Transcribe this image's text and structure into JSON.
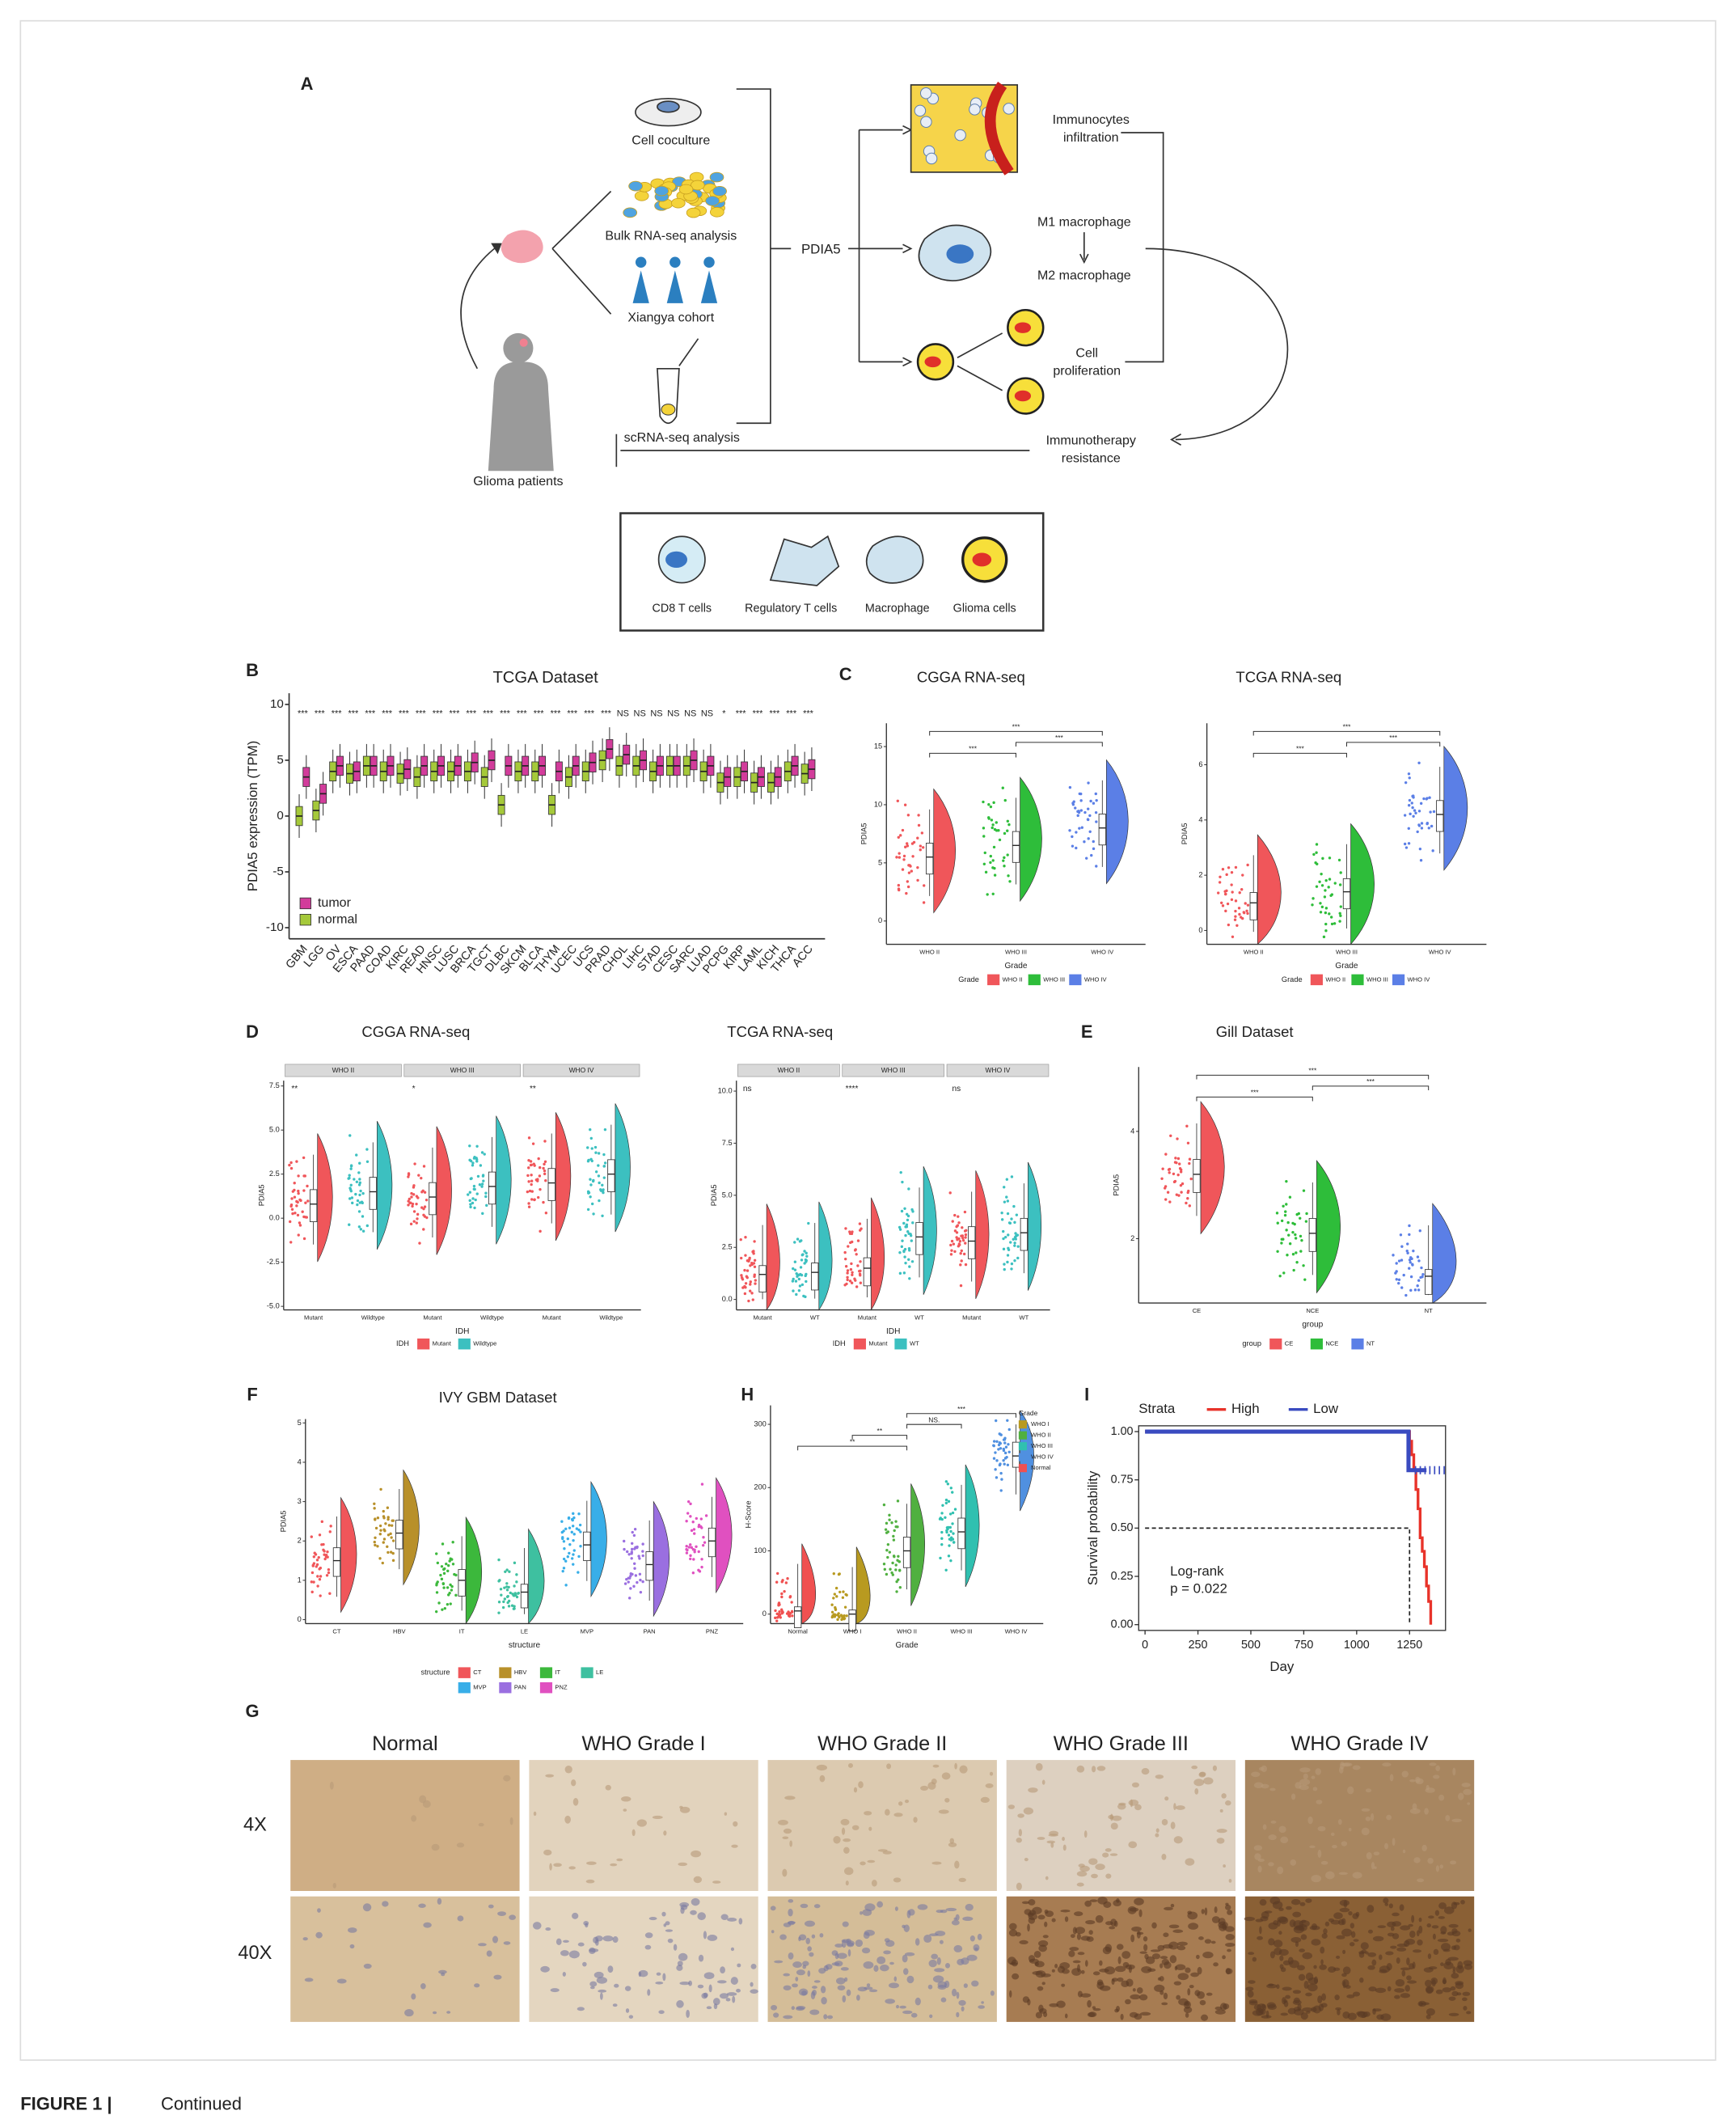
{
  "figure": {
    "A": {
      "label": "A",
      "inputs": [
        "Cell coculture",
        "Bulk RNA-seq analysis",
        "Xiangya cohort",
        "scRNA-seq analysis"
      ],
      "patients": "Glioma patients",
      "gene": "PDIA5",
      "effects": [
        [
          "Immunocytes",
          "infiltration"
        ],
        [
          "M1 macrophage"
        ],
        [
          "M2 macrophage"
        ],
        [
          "Cell",
          "proliferation"
        ]
      ],
      "outcome": [
        "Immunotherapy",
        "resistance"
      ],
      "cell_legend": [
        "CD8 T cells",
        "Regulatory T cells",
        "Macrophage",
        "Glioma cells"
      ]
    },
    "B": {
      "label": "B",
      "title": "TCGA Dataset",
      "ylabel": "PDIA5 expression (TPM)",
      "ylim": [
        -11,
        11
      ],
      "yticks": [
        10,
        5,
        0,
        -5,
        -10
      ],
      "categories": [
        "GBM",
        "LGG",
        "OV",
        "ESCA",
        "PAAD",
        "COAD",
        "KIRC",
        "READ",
        "HNSC",
        "LUSC",
        "BRCA",
        "TGCT",
        "DLBC",
        "SKCM",
        "BLCA",
        "THYM",
        "UCEC",
        "UCS",
        "PRAD",
        "CHOL",
        "LIHC",
        "STAD",
        "CESC",
        "SARC",
        "LUAD",
        "PCPG",
        "KIRP",
        "LAML",
        "KICH",
        "THCA",
        "ACC"
      ],
      "significance": [
        "***",
        "***",
        "***",
        "***",
        "***",
        "***",
        "***",
        "***",
        "***",
        "***",
        "***",
        "***",
        "***",
        "***",
        "***",
        "***",
        "***",
        "***",
        "***",
        "NS",
        "NS",
        "NS",
        "NS",
        "NS",
        "NS",
        "*",
        "***",
        "***",
        "***",
        "***",
        "***"
      ],
      "series": [
        {
          "name": "tumor",
          "color": "#d23c9b",
          "values": [
            3.5,
            2,
            4.5,
            4,
            4.5,
            4.5,
            4.2,
            4.5,
            4.5,
            4.5,
            4.8,
            5,
            4.5,
            4.5,
            4.5,
            4,
            4.5,
            4.8,
            6,
            5.5,
            5,
            4.5,
            4.5,
            5,
            4.5,
            3.5,
            4,
            3.5,
            3.5,
            4.5,
            4.2
          ]
        },
        {
          "name": "normal",
          "color": "#a5c93a",
          "values": [
            0,
            0.5,
            4,
            3.8,
            4.5,
            4,
            3.8,
            3.5,
            4,
            4,
            4,
            3.5,
            1,
            4,
            4,
            1,
            3.5,
            4,
            5,
            4.5,
            4.5,
            4,
            4.5,
            4.5,
            4,
            3,
            3.5,
            3,
            3,
            4,
            3.8
          ]
        }
      ]
    },
    "C": {
      "label": "C",
      "plots": [
        {
          "title": "CGGA RNA-seq",
          "ylabel": "PDIA5",
          "xlabel": "Grade",
          "ylim": [
            -2,
            17
          ],
          "yticks": [
            0,
            5,
            10,
            15
          ],
          "categories": [
            "WHO II",
            "WHO III",
            "WHO IV"
          ],
          "colors": [
            "#f0565a",
            "#2ebd3a",
            "#5b7fe6"
          ],
          "medians": [
            5.5,
            6.5,
            8
          ],
          "brackets": {
            "pairs": [
              [
                0,
                1
              ],
              [
                1,
                2
              ],
              [
                0,
                2
              ]
            ],
            "labels": [
              "***",
              "***",
              "***"
            ]
          },
          "legend": {
            "title": "Grade",
            "items": [
              "WHO II",
              "WHO III",
              "WHO IV"
            ],
            "colors": [
              "#f0565a",
              "#2ebd3a",
              "#5b7fe6"
            ]
          }
        },
        {
          "title": "TCGA RNA-seq",
          "ylabel": "PDIA5",
          "xlabel": "Grade",
          "ylim": [
            -0.5,
            7.5
          ],
          "yticks": [
            0,
            2,
            4,
            6
          ],
          "categories": [
            "WHO II",
            "WHO III",
            "WHO IV"
          ],
          "colors": [
            "#f0565a",
            "#2ebd3a",
            "#5b7fe6"
          ],
          "medians": [
            1,
            1.4,
            4.2
          ],
          "brackets": {
            "pairs": [
              [
                0,
                1
              ],
              [
                1,
                2
              ],
              [
                0,
                2
              ]
            ],
            "labels": [
              "***",
              "***",
              "***"
            ]
          },
          "legend": {
            "title": "Grade",
            "items": [
              "WHO II",
              "WHO III",
              "WHO IV"
            ],
            "colors": [
              "#f0565a",
              "#2ebd3a",
              "#5b7fe6"
            ]
          }
        }
      ]
    },
    "D": {
      "label": "D",
      "plots": [
        {
          "title": "CGGA RNA-seq",
          "ylabel": "PDIA5",
          "xlabel": "IDH",
          "ylim": [
            -5.2,
            7.8
          ],
          "yticks": [
            {
              "value": 7.5,
              "label": "7.5"
            },
            {
              "value": 5,
              "label": "5.0"
            },
            {
              "value": 2.5,
              "label": "2.5"
            },
            {
              "value": 0,
              "label": "0.0"
            },
            {
              "value": -2.5,
              "label": "-2.5"
            },
            {
              "value": -5,
              "label": "-5.0"
            }
          ],
          "facets": [
            "WHO II",
            "WHO III",
            "WHO IV"
          ],
          "facet_sig": [
            "**",
            "*",
            "**"
          ],
          "categories": [
            "Mutant",
            "Wildtype"
          ],
          "colors": [
            "#f0565a",
            "#3cc0c0"
          ],
          "medians": [
            [
              0.8,
              1.5
            ],
            [
              1.2,
              1.8
            ],
            [
              2,
              2.5
            ]
          ],
          "legend": {
            "title": "IDH",
            "items": [
              "Mutant",
              "Wildtype"
            ],
            "colors": [
              "#f0565a",
              "#3cc0c0"
            ]
          }
        },
        {
          "title": "TCGA RNA-seq",
          "ylabel": "PDIA5",
          "xlabel": "IDH",
          "ylim": [
            -0.5,
            10.5
          ],
          "yticks": [
            {
              "value": 10,
              "label": "10.0"
            },
            {
              "value": 7.5,
              "label": "7.5"
            },
            {
              "value": 5,
              "label": "5.0"
            },
            {
              "value": 2.5,
              "label": "2.5"
            },
            {
              "value": 0,
              "label": "0.0"
            }
          ],
          "facets": [
            "WHO II",
            "WHO III",
            "WHO IV"
          ],
          "facet_sig": [
            "ns",
            "****",
            "ns"
          ],
          "categories": [
            "Mutant",
            "WT"
          ],
          "colors": [
            "#f0565a",
            "#3cc0c0"
          ],
          "medians": [
            [
              1.2,
              1.3
            ],
            [
              1.5,
              3
            ],
            [
              2.8,
              3.2
            ]
          ],
          "legend": {
            "title": "IDH",
            "items": [
              "Mutant",
              "WT"
            ],
            "colors": [
              "#f0565a",
              "#3cc0c0"
            ]
          }
        }
      ]
    },
    "E": {
      "label": "E",
      "plots": [
        {
          "title": "Gill Dataset",
          "ylabel": "PDIA5",
          "xlabel": "group",
          "ylim": [
            0.8,
            5.2
          ],
          "yticks": [
            2,
            4
          ],
          "categories": [
            "CE",
            "NCE",
            "NT"
          ],
          "colors": [
            "#f0565a",
            "#2ebd3a",
            "#5b7fe6"
          ],
          "medians": [
            3.2,
            2.1,
            1.3
          ],
          "brackets": {
            "pairs": [
              [
                0,
                1
              ],
              [
                1,
                2
              ],
              [
                0,
                2
              ]
            ],
            "labels": [
              "***",
              "***",
              "***"
            ]
          },
          "legend": {
            "title": "group",
            "items": [
              "CE",
              "NCE",
              "NT"
            ],
            "colors": [
              "#f0565a",
              "#2ebd3a",
              "#5b7fe6"
            ]
          }
        }
      ]
    },
    "F": {
      "label": "F",
      "plots": [
        {
          "title": "IVY GBM Dataset",
          "ylabel": "PDIA5",
          "xlabel": "structure",
          "ylim": [
            -0.1,
            5.1
          ],
          "yticks": [
            5,
            4,
            3,
            2,
            1,
            0
          ],
          "categories": [
            "CT",
            "HBV",
            "IT",
            "LE",
            "MVP",
            "PAN",
            "PNZ"
          ],
          "colors": [
            "#f0565a",
            "#b8902a",
            "#3cb83c",
            "#3ec0a0",
            "#38aee8",
            "#9a6fe0",
            "#e050c0"
          ],
          "medians": [
            1.5,
            2.2,
            1,
            0.7,
            1.9,
            1.4,
            2
          ],
          "legend": {
            "title": "structure",
            "items": [
              "CT",
              "HBV",
              "IT",
              "LE",
              "MVP",
              "PAN",
              "PNZ"
            ],
            "colors": [
              "#f0565a",
              "#b8902a",
              "#3cb83c",
              "#3ec0a0",
              "#38aee8",
              "#9a6fe0",
              "#e050c0"
            ]
          }
        }
      ]
    },
    "H": {
      "label": "H",
      "plots": [
        {
          "title": "",
          "ylabel": "H-Score",
          "xlabel": "Grade",
          "ylim": [
            -15,
            330
          ],
          "yticks": [
            0,
            100,
            200,
            300
          ],
          "categories": [
            "Normal",
            "WHO I",
            "WHO II",
            "WHO III",
            "WHO IV"
          ],
          "colors": [
            "#f05050",
            "#b89a20",
            "#50b040",
            "#30c0b0",
            "#5090e0"
          ],
          "medians": [
            5,
            0,
            100,
            130,
            250
          ],
          "brackets": {
            "pairs": [
              [
                0,
                2
              ],
              [
                1,
                2
              ],
              [
                2,
                3
              ],
              [
                2,
                4
              ]
            ],
            "labels": [
              "**",
              "**",
              "NS.",
              "***"
            ]
          },
          "legend": {
            "title": "Grade",
            "items": [
              "WHO I",
              "WHO II",
              "WHO III",
              "WHO IV",
              "Normal"
            ],
            "colors": [
              "#b89a20",
              "#50b040",
              "#30c0b0",
              "#5090e0",
              "#f05050"
            ]
          }
        }
      ]
    },
    "I": {
      "label": "I",
      "legend_title": "Strata",
      "ylabel": "Survival probability",
      "xlabel": "Day",
      "xlim": [
        -30,
        1420
      ],
      "ylim": [
        -0.03,
        1.03
      ],
      "xticks": [
        0,
        250,
        500,
        750,
        1000,
        1250
      ],
      "yticks": [
        {
          "value": 0,
          "label": "0.00"
        },
        {
          "value": 0.25,
          "label": "0.25"
        },
        {
          "value": 0.5,
          "label": "0.50"
        },
        {
          "value": 0.75,
          "label": "0.75"
        },
        {
          "value": 1,
          "label": "1.00"
        }
      ],
      "series": [
        {
          "name": "High",
          "color": "#e8332a",
          "x": [
            0,
            1240,
            1250,
            1260,
            1270,
            1280,
            1290,
            1300,
            1310,
            1320,
            1330,
            1340,
            1350
          ],
          "y": [
            1,
            1,
            0.95,
            0.88,
            0.8,
            0.7,
            0.6,
            0.45,
            0.38,
            0.3,
            0.2,
            0.12,
            0
          ]
        },
        {
          "name": "Low",
          "color": "#3a4bc0",
          "x": [
            0,
            1240,
            1245,
            1330
          ],
          "y": [
            1,
            1,
            0.8,
            0.8
          ]
        }
      ],
      "reference": {
        "x": 1250,
        "y": 0.5
      },
      "annotation": [
        "Log-rank",
        "p = 0.022"
      ]
    },
    "G": {
      "label": "G",
      "columns": [
        "Normal",
        "WHO Grade I",
        "WHO Grade II",
        "WHO Grade III",
        "WHO Grade IV"
      ],
      "rows": [
        "4X",
        "40X"
      ]
    }
  },
  "caption": {
    "label": "FIGURE 1 |",
    "text": "Continued"
  }
}
